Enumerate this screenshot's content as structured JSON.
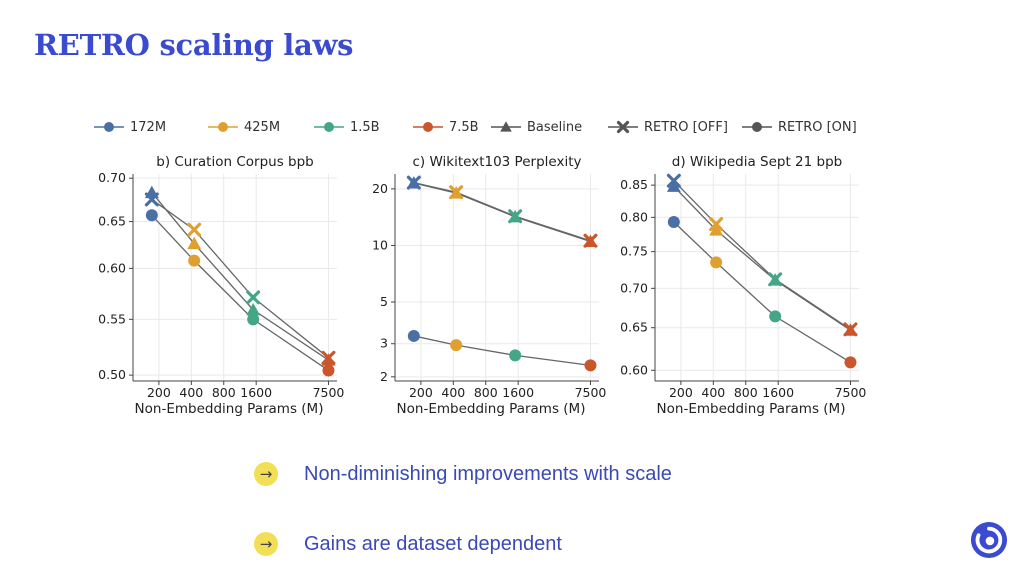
{
  "slide": {
    "title": "RETRO scaling laws",
    "bullets": [
      "Non-diminishing improvements with scale",
      "Gains are dataset dependent"
    ],
    "bullet_icon": "arrow-right-icon",
    "logo_icon": "deepmind-logo-icon"
  },
  "legend": [
    {
      "label": "172M",
      "marker": "circle",
      "color": "#4a6fa5"
    },
    {
      "label": "425M",
      "marker": "circle",
      "color": "#e0a030"
    },
    {
      "label": "1.5B",
      "marker": "circle",
      "color": "#45a685"
    },
    {
      "label": "7.5B",
      "marker": "circle",
      "color": "#c9572b"
    },
    {
      "label": "Baseline",
      "marker": "triangle",
      "color": "#555555"
    },
    {
      "label": "RETRO [OFF]",
      "marker": "x",
      "color": "#555555"
    },
    {
      "label": "RETRO [ON]",
      "marker": "circle",
      "color": "#555555"
    }
  ],
  "colors": {
    "172M": "#4a6fa5",
    "425M": "#e0a030",
    "1.5B": "#45a685",
    "7.5B": "#c9572b",
    "line": "#666666",
    "title": "#3b4bd0",
    "bullet_text": "#3a48b8",
    "bullet_dot": "#f2df55"
  },
  "chart_data": [
    {
      "type": "line",
      "title": "b) Curation Corpus bpb",
      "xlabel": "Non-Embedding Params (M)",
      "ylabel": "",
      "xscale": "log",
      "yscale": "log",
      "grid": true,
      "xlim": [
        115,
        9000
      ],
      "ylim": [
        0.495,
        0.705
      ],
      "xticks": [
        200,
        400,
        800,
        1600,
        7500
      ],
      "xticklabels": [
        "200",
        "400",
        "800",
        "1600",
        "7500"
      ],
      "yticks": [
        0.5,
        0.55,
        0.6,
        0.65,
        0.7
      ],
      "yticklabels": [
        "0.50",
        "0.55",
        "0.60",
        "0.65",
        "0.70"
      ],
      "x": [
        172,
        425,
        1500,
        7500
      ],
      "series": [
        {
          "name": "Baseline",
          "marker": "triangle",
          "values": [
            0.683,
            0.626,
            0.559,
            0.513
          ]
        },
        {
          "name": "RETRO [OFF]",
          "marker": "x",
          "values": [
            0.675,
            0.641,
            0.571,
            0.515
          ]
        },
        {
          "name": "RETRO [ON]",
          "marker": "circle",
          "values": [
            0.657,
            0.608,
            0.55,
            0.504
          ]
        }
      ]
    },
    {
      "type": "line",
      "title": "c) Wikitext103 Perplexity",
      "xlabel": "Non-Embedding Params (M)",
      "ylabel": "",
      "xscale": "log",
      "yscale": "log",
      "grid": true,
      "xlim": [
        115,
        9000
      ],
      "ylim": [
        1.9,
        24
      ],
      "xticks": [
        200,
        400,
        800,
        1600,
        7500
      ],
      "xticklabels": [
        "200",
        "400",
        "800",
        "1600",
        "7500"
      ],
      "yticks": [
        2,
        3,
        5,
        10,
        20
      ],
      "yticklabels": [
        "2",
        "3",
        "5",
        "10",
        "20"
      ],
      "x": [
        172,
        425,
        1500,
        7500
      ],
      "series": [
        {
          "name": "Baseline",
          "marker": "triangle",
          "values": [
            21.5,
            19.0,
            14.2,
            10.5
          ]
        },
        {
          "name": "RETRO [OFF]",
          "marker": "x",
          "values": [
            21.6,
            19.2,
            14.3,
            10.6
          ]
        },
        {
          "name": "RETRO [ON]",
          "marker": "circle",
          "values": [
            3.3,
            2.95,
            2.6,
            2.3
          ]
        }
      ]
    },
    {
      "type": "line",
      "title": "d) Wikipedia Sept 21 bpb",
      "xlabel": "Non-Embedding Params (M)",
      "ylabel": "",
      "xscale": "log",
      "yscale": "log",
      "grid": true,
      "xlim": [
        115,
        9000
      ],
      "ylim": [
        0.588,
        0.868
      ],
      "xticks": [
        200,
        400,
        800,
        1600,
        7500
      ],
      "xticklabels": [
        "200",
        "400",
        "800",
        "1600",
        "7500"
      ],
      "yticks": [
        0.6,
        0.65,
        0.7,
        0.75,
        0.8,
        0.85
      ],
      "yticklabels": [
        "0.60",
        "0.65",
        "0.70",
        "0.75",
        "0.80",
        "0.85"
      ],
      "x": [
        172,
        425,
        1500,
        7500
      ],
      "series": [
        {
          "name": "Baseline",
          "marker": "triangle",
          "values": [
            0.848,
            0.781,
            0.711,
            0.647
          ]
        },
        {
          "name": "RETRO [OFF]",
          "marker": "x",
          "values": [
            0.857,
            0.79,
            0.712,
            0.648
          ]
        },
        {
          "name": "RETRO [ON]",
          "marker": "circle",
          "values": [
            0.793,
            0.735,
            0.664,
            0.609
          ]
        }
      ]
    }
  ]
}
